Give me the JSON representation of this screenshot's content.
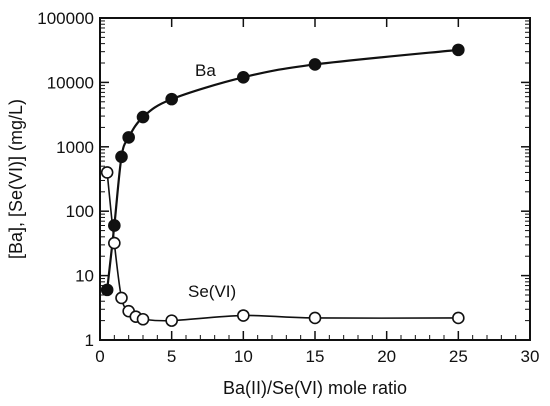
{
  "chart_data": {
    "type": "line",
    "title": "",
    "xlabel": "Ba(II)/Se(VI)  mole  ratio",
    "ylabel": "[Ba],  [Se(VI)]  (mg/L)",
    "xlim": [
      0,
      30
    ],
    "ylim": [
      1,
      100000
    ],
    "yscale": "log",
    "grid": false,
    "legend": "none",
    "xticks": [
      0,
      5,
      10,
      15,
      20,
      25,
      30
    ],
    "xtick_labels": [
      "0",
      "5",
      "10",
      "15",
      "20",
      "25",
      "30"
    ],
    "yticks": [
      1,
      10,
      100,
      1000,
      10000,
      100000
    ],
    "ytick_labels": [
      "1",
      "10",
      "100",
      "1000",
      "10000",
      "100000"
    ],
    "series": [
      {
        "name": "Ba",
        "marker": "filled-circle",
        "color": "#111111",
        "x": [
          0.5,
          1,
          1.5,
          2,
          3,
          5,
          10,
          15,
          25
        ],
        "y": [
          6,
          60,
          700,
          1400,
          2900,
          5500,
          12000,
          19000,
          32000
        ]
      },
      {
        "name": "Se(VI)",
        "marker": "open-circle",
        "color": "#111111",
        "x": [
          0.5,
          1,
          1.5,
          2,
          2.5,
          3,
          5,
          10,
          15,
          25
        ],
        "y": [
          400,
          32,
          4.5,
          2.8,
          2.3,
          2.1,
          2.0,
          2.4,
          2.2,
          2.2
        ]
      }
    ]
  }
}
